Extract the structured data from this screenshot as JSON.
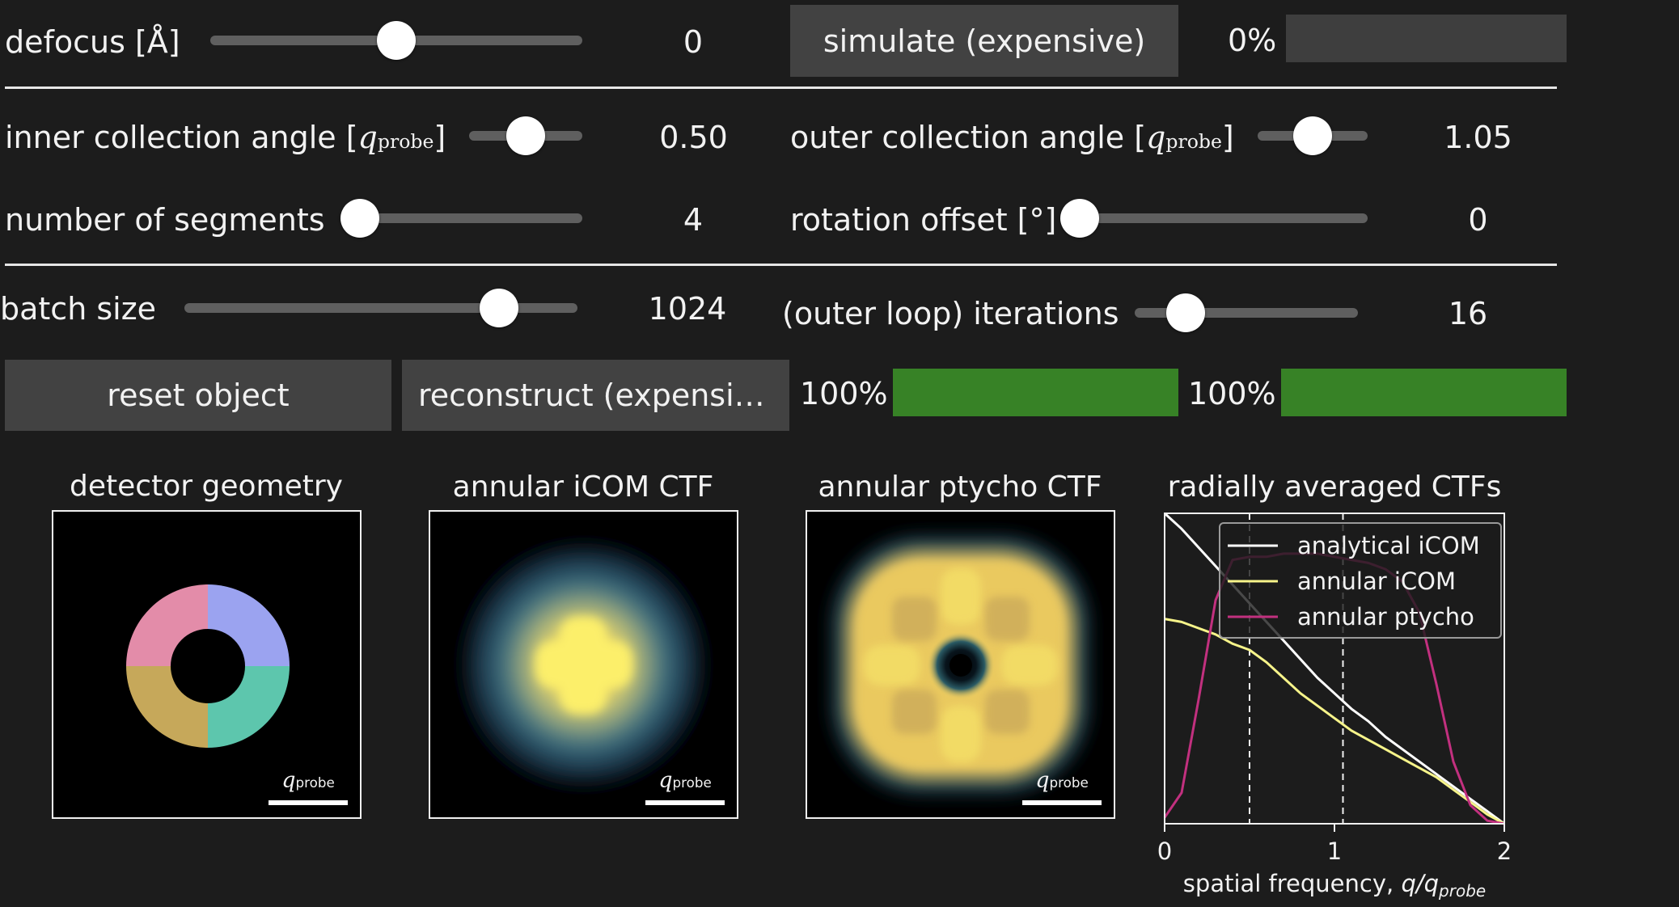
{
  "controls": {
    "defocus": {
      "label": "defocus [Å]",
      "value": "0",
      "fraction": 0.5
    },
    "simulate_button": "simulate (expensive)",
    "simulate_progress": {
      "text": "0%",
      "fraction": 0.0
    },
    "inner_angle": {
      "label_prefix": "inner collection angle [",
      "label_var": "q",
      "label_sub": "probe",
      "label_suffix": "]",
      "value": "0.50",
      "fraction": 0.5
    },
    "outer_angle": {
      "label_prefix": "outer collection angle [",
      "label_var": "q",
      "label_sub": "probe",
      "label_suffix": "]",
      "value": "1.05",
      "fraction": 0.5
    },
    "segments": {
      "label": "number of segments",
      "value": "4",
      "fraction": 0.0
    },
    "rotation": {
      "label": "rotation offset [°]",
      "value": "0",
      "fraction": 0.0
    },
    "batch_size": {
      "label": "batch size",
      "value": "1024",
      "fraction": 0.8
    },
    "iterations": {
      "label": "(outer loop) iterations",
      "value": "16",
      "fraction": 0.23
    },
    "reset_button": "reset object",
    "reconstruct_button": "reconstruct (expensive)",
    "progress_1": {
      "text": "100%",
      "fraction": 1.0
    },
    "progress_2": {
      "text": "100%",
      "fraction": 1.0
    }
  },
  "colors": {
    "progress_fill": "#378226",
    "segment_1": "#9ba3f0",
    "segment_2": "#5dc6ad",
    "segment_3": "#c6a85a",
    "segment_4": "#e38ca9",
    "analytical": "#ffffff",
    "annular_icom": "#f7f48a",
    "annular_ptycho": "#c2307f"
  },
  "panels": {
    "detector": {
      "title": "detector geometry",
      "scalebar_var": "q",
      "scalebar_sub": "probe"
    },
    "icom": {
      "title": "annular iCOM CTF",
      "scalebar_var": "q",
      "scalebar_sub": "probe"
    },
    "ptycho": {
      "title": "annular ptycho CTF",
      "scalebar_var": "q",
      "scalebar_sub": "probe"
    }
  },
  "chart_data": {
    "type": "line",
    "title": "radially averaged CTFs",
    "xlabel_prefix": "spatial frequency, ",
    "xlabel_var": "q/q",
    "xlabel_sub": "probe",
    "xlim": [
      0,
      2
    ],
    "ylim": [
      0,
      1
    ],
    "xticks": [
      "0",
      "1",
      "2"
    ],
    "vlines": [
      0.5,
      1.05
    ],
    "legend_position": "top-right",
    "x": [
      0,
      0.1,
      0.2,
      0.3,
      0.4,
      0.5,
      0.6,
      0.7,
      0.8,
      0.9,
      1.0,
      1.1,
      1.2,
      1.3,
      1.4,
      1.5,
      1.6,
      1.7,
      1.8,
      1.9,
      2.0
    ],
    "series": [
      {
        "name": "analytical iCOM",
        "values": [
          1.0,
          0.95,
          0.89,
          0.83,
          0.77,
          0.71,
          0.65,
          0.59,
          0.53,
          0.47,
          0.42,
          0.37,
          0.33,
          0.28,
          0.24,
          0.2,
          0.16,
          0.12,
          0.08,
          0.04,
          0.0
        ]
      },
      {
        "name": "annular iCOM",
        "values": [
          0.66,
          0.65,
          0.63,
          0.61,
          0.58,
          0.56,
          0.52,
          0.47,
          0.42,
          0.38,
          0.34,
          0.3,
          0.27,
          0.24,
          0.21,
          0.18,
          0.15,
          0.11,
          0.07,
          0.03,
          0.0
        ]
      },
      {
        "name": "annular ptycho",
        "values": [
          0.02,
          0.1,
          0.4,
          0.72,
          0.85,
          0.86,
          0.86,
          0.87,
          0.87,
          0.87,
          0.86,
          0.85,
          0.84,
          0.82,
          0.78,
          0.68,
          0.45,
          0.2,
          0.06,
          0.01,
          0.0
        ]
      }
    ]
  }
}
